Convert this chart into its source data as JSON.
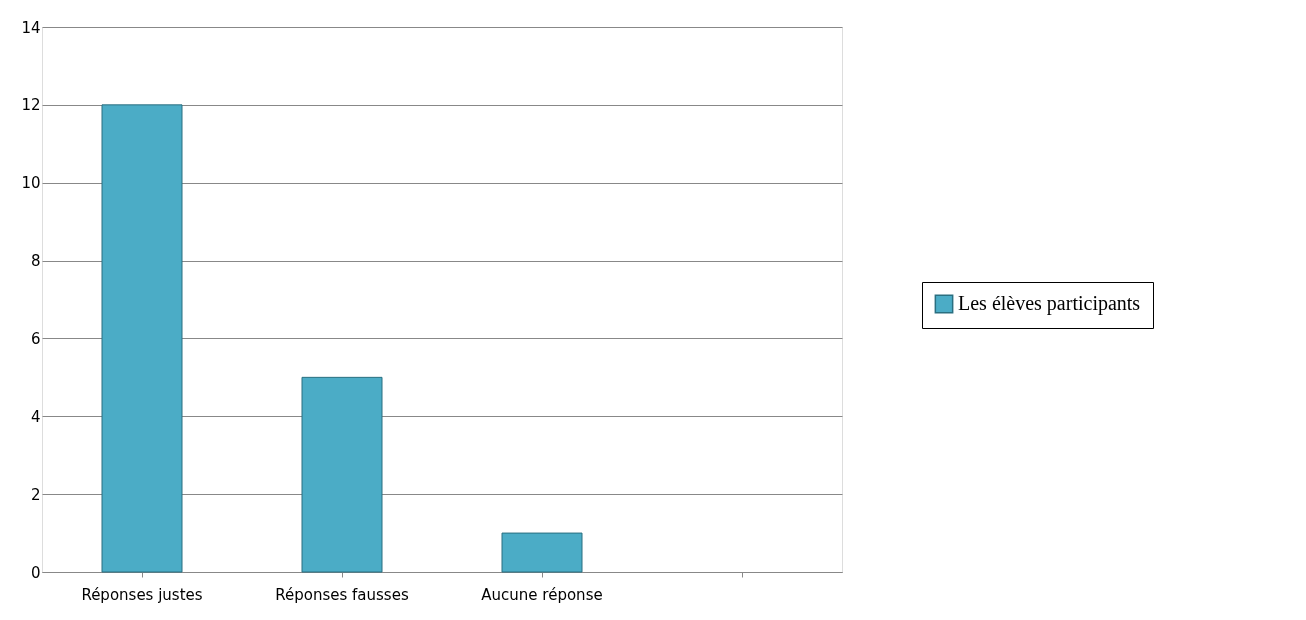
{
  "chart_data": {
    "type": "bar",
    "categories": [
      "Réponses justes",
      "Réponses fausses",
      "Aucune réponse",
      null
    ],
    "series": [
      {
        "name": "Les élèves participants",
        "color": "#4bacc6",
        "values": [
          12,
          5,
          1,
          null
        ]
      }
    ],
    "ylim": [
      0,
      14
    ],
    "yticks": [
      0,
      2,
      4,
      6,
      8,
      10,
      12,
      14
    ],
    "grid": "y",
    "legend": "right"
  }
}
